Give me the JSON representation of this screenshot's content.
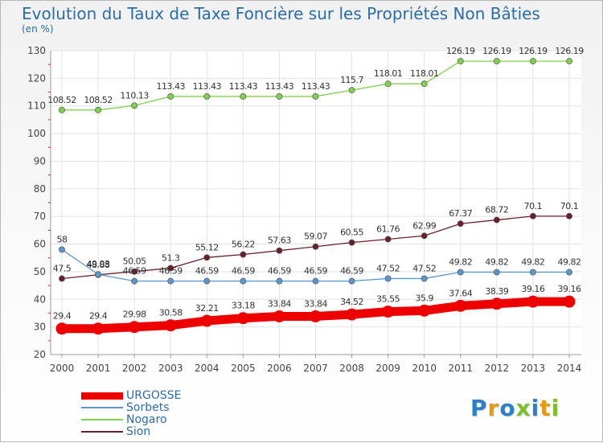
{
  "title": "Evolution du Taux de Taxe Foncière sur les Propriétés Non Bâties",
  "unit_label": "(en %)",
  "logo": {
    "text": "Proxiti",
    "letter_colors": [
      "#2f7fc6",
      "#e69a12",
      "#2f7fc6",
      "#7cbf2f",
      "#2f7fc6",
      "#e69a12",
      "#7cbf2f"
    ]
  },
  "chart_data": {
    "type": "line",
    "x": [
      "2000",
      "2001",
      "2002",
      "2003",
      "2004",
      "2005",
      "2006",
      "2007",
      "2008",
      "2009",
      "2010",
      "2011",
      "2012",
      "2013",
      "2014"
    ],
    "ylim": [
      20,
      130
    ],
    "yticks": [
      "20",
      "30",
      "40",
      "50",
      "60",
      "70",
      "80",
      "90",
      "100",
      "110",
      "120",
      "130"
    ],
    "grid": true,
    "legend_position": "bottom-left",
    "series": [
      {
        "name": "Sion",
        "color": "#6b1f2a",
        "values": [
          47.5,
          48.88,
          50.05,
          51.3,
          55.12,
          56.22,
          57.63,
          59.07,
          60.55,
          61.76,
          62.99,
          67.37,
          68.72,
          70.1,
          70.1
        ],
        "labels": [
          "47.5",
          "48.88",
          "50.05",
          "51.3",
          "55.12",
          "56.22",
          "57.63",
          "59.07",
          "60.55",
          "61.76",
          "62.99",
          "67.37",
          "68.72",
          "70.1",
          "70.1"
        ]
      },
      {
        "name": "Sorbets",
        "color": "#5b97cf",
        "values": [
          58,
          49.03,
          46.59,
          46.59,
          46.59,
          46.59,
          46.59,
          46.59,
          46.59,
          47.52,
          47.52,
          49.82,
          49.82,
          49.82,
          49.82
        ],
        "labels": [
          "58",
          "49.03",
          "46.59",
          "46.59",
          "46.59",
          "46.59",
          "46.59",
          "46.59",
          "46.59",
          "47.52",
          "47.52",
          "49.82",
          "49.82",
          "49.82",
          "49.82"
        ]
      },
      {
        "name": "Nogaro",
        "color": "#80d14d",
        "values": [
          108.52,
          108.52,
          110.13,
          113.43,
          113.43,
          113.43,
          113.43,
          113.43,
          115.7,
          118.01,
          118.01,
          126.19,
          126.19,
          126.19,
          126.19
        ],
        "labels": [
          "108.52",
          "108.52",
          "110.13",
          "113.43",
          "113.43",
          "113.43",
          "113.43",
          "113.43",
          "115.7",
          "118.01",
          "118.01",
          "126.19",
          "126.19",
          "126.19",
          "126.19"
        ]
      },
      {
        "name": "URGOSSE",
        "color": "#ee0000",
        "bold": true,
        "values": [
          29.4,
          29.4,
          29.98,
          30.58,
          32.21,
          33.18,
          33.84,
          33.84,
          34.52,
          35.55,
          35.9,
          37.64,
          38.39,
          39.16,
          39.16
        ],
        "labels": [
          "29.4",
          "29.4",
          "29.98",
          "30.58",
          "32.21",
          "33.18",
          "33.84",
          "33.84",
          "34.52",
          "35.55",
          "35.9",
          "37.64",
          "38.39",
          "39.16",
          "39.16"
        ]
      }
    ],
    "legend_order": [
      "URGOSSE",
      "Sorbets",
      "Nogaro",
      "Sion"
    ]
  }
}
